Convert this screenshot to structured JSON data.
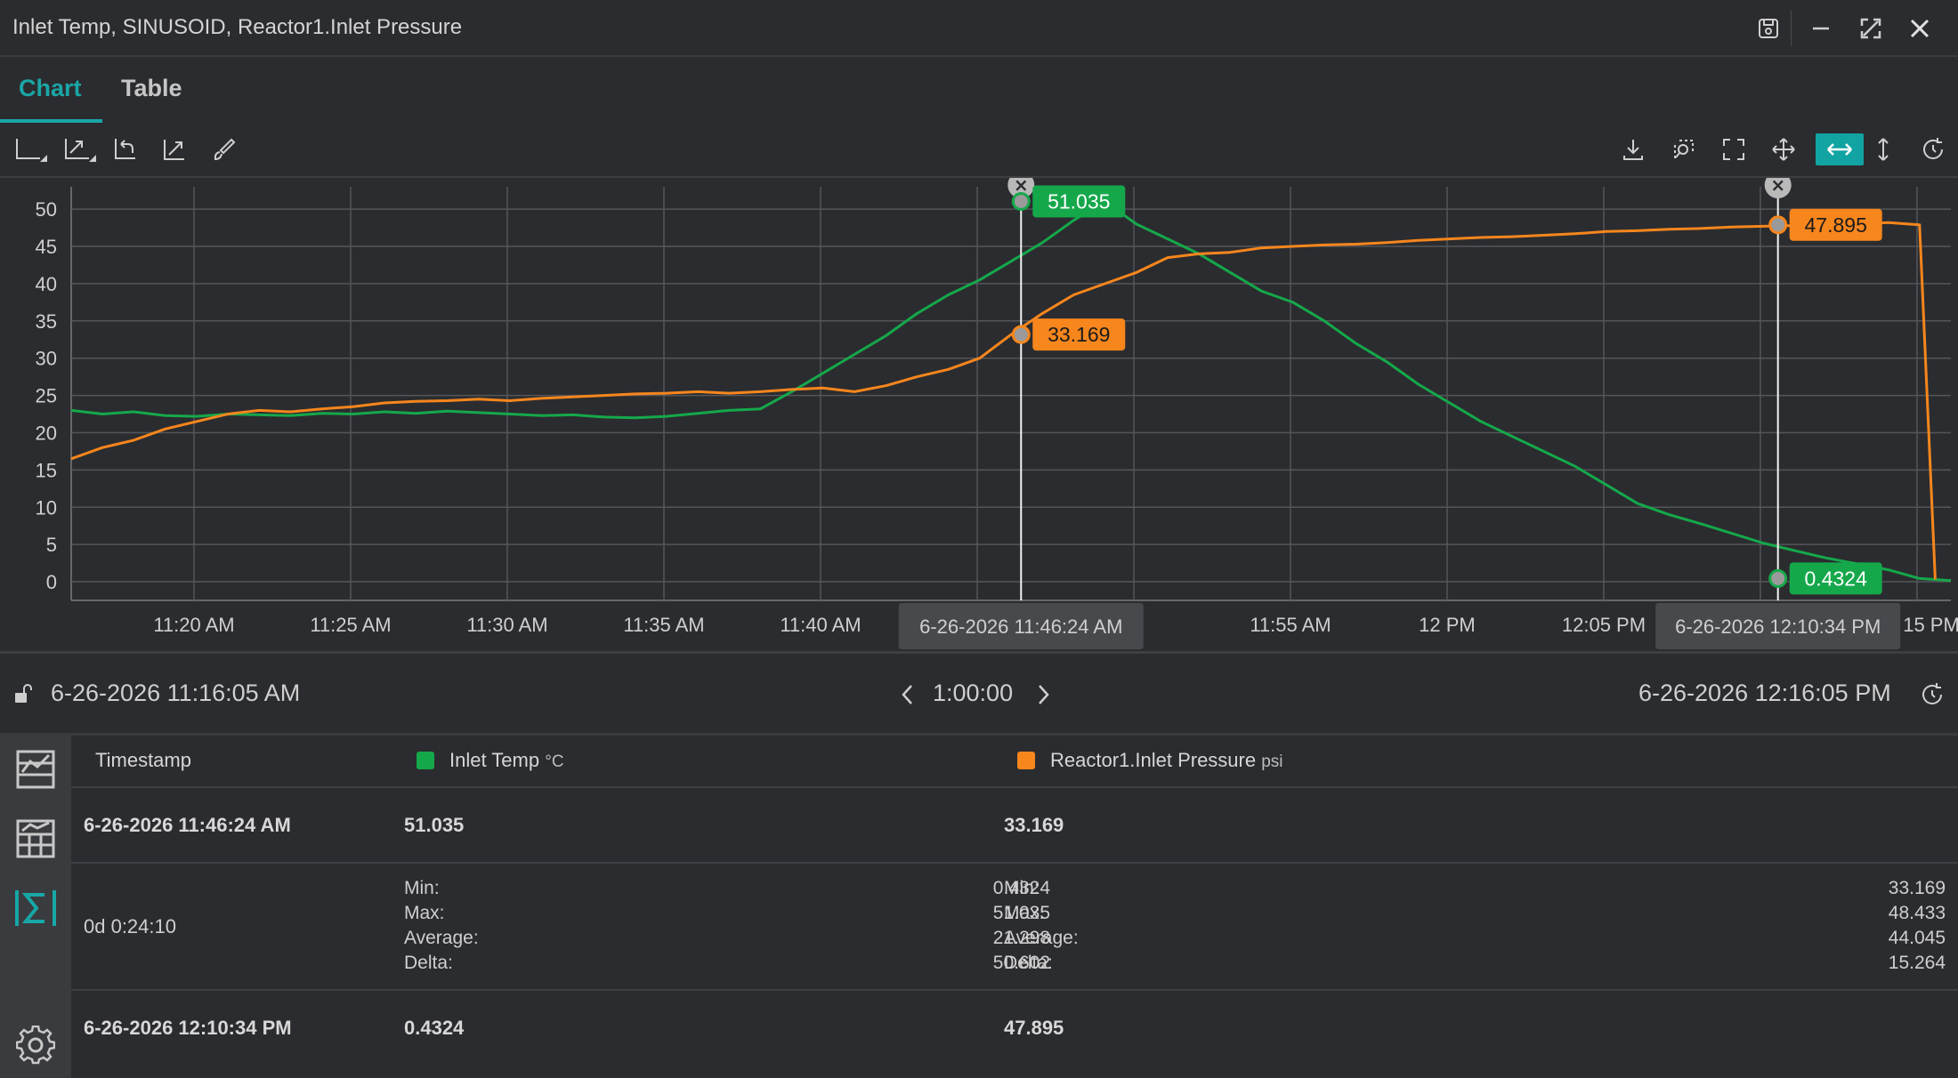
{
  "window": {
    "title": "Inlet Temp, SINUSOID, Reactor1.Inlet Pressure",
    "buttons": [
      "save-icon",
      "minimize-icon",
      "maximize-icon",
      "close-icon"
    ]
  },
  "tabs": [
    {
      "label": "Chart",
      "active": true
    },
    {
      "label": "Table",
      "active": false
    }
  ],
  "toolbar": {
    "left_icons": [
      "axis-options-icon",
      "scale-options-icon",
      "undo-zoom-icon",
      "autoscale-icon",
      "brush-icon"
    ],
    "right_icons": [
      "download-icon",
      "zoom-select-icon",
      "fullscreen-icon",
      "pan-icon",
      "horizontal-zoom-icon",
      "vertical-zoom-icon",
      "refresh-icon"
    ],
    "active_tool": "horizontal-zoom-icon"
  },
  "chart_data": {
    "type": "line",
    "y_ticks": [
      "0",
      "5",
      "10",
      "15",
      "20",
      "25",
      "30",
      "35",
      "40",
      "45",
      "50"
    ],
    "ylim": [
      -2.5,
      53
    ],
    "x_ticks": [
      "11:20 AM",
      "11:25 AM",
      "11:30 AM",
      "11:35 AM",
      "11:40 AM",
      "AM",
      "11:55 AM",
      "12 PM",
      "12:05 PM",
      "15 PM"
    ],
    "grid": true,
    "series": [
      {
        "name": "Inlet Temp",
        "color": "#15a84b",
        "minutes": [
          0,
          1,
          2,
          3,
          4,
          5,
          6,
          7,
          8,
          9,
          10,
          11,
          12,
          13,
          14,
          15,
          16,
          17,
          18,
          19,
          20,
          21,
          22,
          23,
          24,
          25,
          26,
          27,
          28,
          29,
          30,
          31,
          32,
          33,
          34,
          35,
          36,
          37,
          38,
          39,
          40,
          41,
          42,
          43,
          44,
          45,
          46,
          47,
          48,
          49,
          50,
          51,
          52,
          53,
          54,
          55,
          56,
          57,
          58,
          59,
          60
        ],
        "values": [
          23,
          22.5,
          22.8,
          22.3,
          22.2,
          22.5,
          22.4,
          22.3,
          22.6,
          22.5,
          22.8,
          22.6,
          22.9,
          22.7,
          22.5,
          22.3,
          22.4,
          22.1,
          22,
          22.2,
          22.6,
          23,
          23.2,
          25.5,
          28,
          30.5,
          33,
          36,
          38.5,
          40.5,
          43,
          45.5,
          48.5,
          51.035,
          48,
          46,
          44,
          41.5,
          39,
          37.5,
          35,
          32,
          29.5,
          26.5,
          24,
          21.5,
          19.5,
          17.5,
          15.5,
          13,
          10.5,
          9,
          7.8,
          6.5,
          5.2,
          4.2,
          3.2,
          2.4,
          1.6,
          0.4324,
          0.15
        ]
      },
      {
        "name": "Reactor1.Inlet Pressure",
        "color": "#f7861d",
        "minutes": [
          0,
          1,
          2,
          3,
          4,
          5,
          6,
          7,
          8,
          9,
          10,
          11,
          12,
          13,
          14,
          15,
          16,
          17,
          18,
          19,
          20,
          21,
          22,
          23,
          24,
          25,
          26,
          27,
          28,
          29,
          30,
          31,
          32,
          33,
          34,
          35,
          36,
          37,
          38,
          39,
          40,
          41,
          42,
          43,
          44,
          45,
          46,
          47,
          48,
          49,
          50,
          51,
          52,
          53,
          54,
          55,
          56,
          57,
          58,
          59,
          59.5
        ],
        "values": [
          16.5,
          18,
          19,
          20.5,
          21.5,
          22.5,
          23,
          22.8,
          23.2,
          23.5,
          24,
          24.2,
          24.3,
          24.5,
          24.3,
          24.6,
          24.8,
          25,
          25.2,
          25.3,
          25.5,
          25.3,
          25.5,
          25.8,
          26,
          25.5,
          26.3,
          27.5,
          28.5,
          30,
          33.169,
          36,
          38.5,
          40,
          41.5,
          43.5,
          44,
          44.2,
          44.8,
          45,
          45.2,
          45.3,
          45.5,
          45.8,
          46,
          46.2,
          46.3,
          46.5,
          46.7,
          47,
          47.1,
          47.3,
          47.4,
          47.6,
          47.7,
          47.8,
          47.9,
          48,
          48.2,
          47.895,
          0.3
        ]
      }
    ],
    "cursors": [
      {
        "label": "6-26-2026 11:46:24 AM",
        "minute": 30.32,
        "values": [
          "51.035",
          "33.169"
        ]
      },
      {
        "label": "6-26-2026 12:10:34 PM",
        "minute": 54.48,
        "values": [
          "0.4324",
          "47.895"
        ]
      }
    ]
  },
  "range": {
    "start": "6-26-2026 11:16:05 AM",
    "duration": "1:00:00",
    "end": "6-26-2026 12:16:05 PM"
  },
  "rail_icons": [
    "chart-table-icon",
    "data-table-icon",
    "sigma-icon",
    "settings-icon"
  ],
  "table": {
    "headers": {
      "timestamp": "Timestamp",
      "s1": "Inlet Temp",
      "s1_unit": "°C",
      "s2": "Reactor1.Inlet Pressure",
      "s2_unit": "psi"
    },
    "row1": {
      "timestamp": "6-26-2026 11:46:24 AM",
      "s1": "51.035",
      "s2": "33.169"
    },
    "summary": {
      "duration": "0d 0:24:10",
      "labels": [
        "Min:",
        "Max:",
        "Average:",
        "Delta:"
      ],
      "s1": [
        "0.4324",
        "51.035",
        "21.298",
        "50.602"
      ],
      "s2": [
        "33.169",
        "48.433",
        "44.045",
        "15.264"
      ]
    },
    "row2": {
      "timestamp": "6-26-2026 12:10:34 PM",
      "s1": "0.4324",
      "s2": "47.895"
    }
  }
}
